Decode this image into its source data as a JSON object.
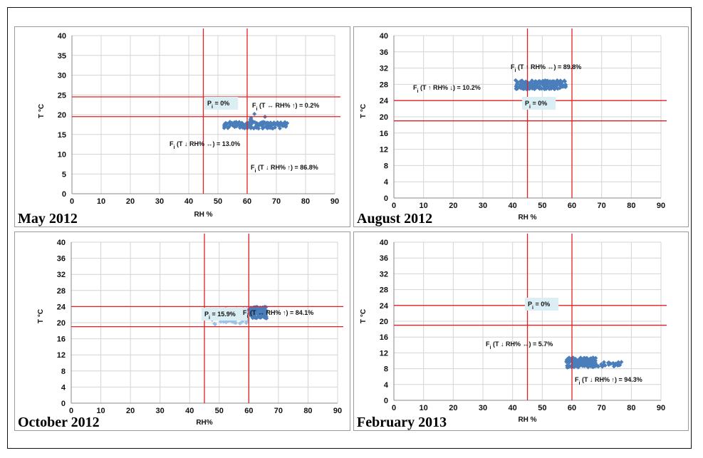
{
  "chart_data": [
    {
      "type": "scatter",
      "panel_label": "May 2012",
      "xlabel": "RH %",
      "ylabel": "T °C",
      "xlim": [
        0,
        90
      ],
      "ylim": [
        0,
        40
      ],
      "xticks": [
        0,
        10,
        20,
        30,
        40,
        50,
        60,
        70,
        80,
        90
      ],
      "yticks": [
        0,
        5,
        10,
        15,
        20,
        25,
        30,
        35,
        40
      ],
      "grid": true,
      "thresholds": {
        "rh": [
          45,
          60
        ],
        "t": [
          19.5,
          24.5
        ]
      },
      "clusters": [
        {
          "rh": [
            52,
            74
          ],
          "t": [
            16.5,
            18.2
          ],
          "color": "#4a7ebb",
          "n": 140
        },
        {
          "rh": [
            60,
            67
          ],
          "t": [
            17,
            20.3
          ],
          "color": "#4a7ebb",
          "n": 12
        }
      ],
      "annotations": [
        {
          "text": "Pi = 0%",
          "boxed": true
        },
        {
          "text": "Fi (T ↔ RH% ↑) = 0.2%",
          "boxed": false
        },
        {
          "text": "Fi (T ↓ RH% ↔) = 13.0%",
          "boxed": false
        },
        {
          "text": "Fi (T ↓ RH% ↑) = 86.8%",
          "boxed": false
        }
      ]
    },
    {
      "type": "scatter",
      "panel_label": "August 2012",
      "xlabel": "RH %",
      "ylabel": "T °C",
      "xlim": [
        0,
        90
      ],
      "ylim": [
        0,
        40
      ],
      "xticks": [
        0,
        10,
        20,
        30,
        40,
        50,
        60,
        70,
        80,
        90
      ],
      "yticks": [
        0,
        4,
        8,
        12,
        16,
        20,
        24,
        28,
        32,
        36,
        40
      ],
      "grid": true,
      "thresholds": {
        "rh": [
          45,
          60
        ],
        "t": [
          19,
          24
        ]
      },
      "clusters": [
        {
          "rh": [
            41,
            58
          ],
          "t": [
            26.8,
            29
          ],
          "color": "#4a7ebb",
          "n": 170
        }
      ],
      "annotations": [
        {
          "text": "Fi (T ↑ RH% ↔) = 89.8%",
          "boxed": false
        },
        {
          "text": "Fi (T ↑ RH% ↓) = 10.2%",
          "boxed": false
        },
        {
          "text": "Pi = 0%",
          "boxed": true
        }
      ]
    },
    {
      "type": "scatter",
      "panel_label": "October 2012",
      "xlabel": "RH%",
      "ylabel": "T °C",
      "xlim": [
        0,
        90
      ],
      "ylim": [
        0,
        40
      ],
      "xticks": [
        0,
        10,
        20,
        30,
        40,
        50,
        60,
        70,
        80,
        90
      ],
      "yticks": [
        0,
        4,
        8,
        12,
        16,
        20,
        24,
        28,
        32,
        36,
        40
      ],
      "grid": true,
      "thresholds": {
        "rh": [
          45,
          60
        ],
        "t": [
          19,
          24
        ]
      },
      "clusters": [
        {
          "rh": [
            47,
            60
          ],
          "t": [
            19.5,
            23.5
          ],
          "color": "#9dc3e6",
          "n": 90
        },
        {
          "rh": [
            60,
            66
          ],
          "t": [
            21,
            24
          ],
          "color": "#4a7ebb",
          "n": 110
        }
      ],
      "annotations": [
        {
          "text": "Pi = 15.9%",
          "boxed": true
        },
        {
          "text": "Fi (T ↔ RH% ↑) = 84.1%",
          "boxed": false
        }
      ]
    },
    {
      "type": "scatter",
      "panel_label": "February 2013",
      "xlabel": "RH %",
      "ylabel": "T °C",
      "xlim": [
        0,
        90
      ],
      "ylim": [
        0,
        40
      ],
      "xticks": [
        0,
        10,
        20,
        30,
        40,
        50,
        60,
        70,
        80,
        90
      ],
      "yticks": [
        0,
        4,
        8,
        12,
        16,
        20,
        24,
        28,
        32,
        36,
        40
      ],
      "grid": true,
      "thresholds": {
        "rh": [
          45,
          60
        ],
        "t": [
          19,
          24
        ]
      },
      "clusters": [
        {
          "rh": [
            58,
            68
          ],
          "t": [
            8.3,
            10.8
          ],
          "color": "#4a7ebb",
          "n": 150
        },
        {
          "rh": [
            66,
            77
          ],
          "t": [
            8.5,
            9.8
          ],
          "color": "#4a7ebb",
          "n": 40
        }
      ],
      "annotations": [
        {
          "text": "Pi = 0%",
          "boxed": true
        },
        {
          "text": "Fi (T ↓ RH% ↔) = 5.7%",
          "boxed": false
        },
        {
          "text": "Fi (T ↓ RH% ↑) = 94.3%",
          "boxed": false
        }
      ]
    }
  ],
  "colors": {
    "threshold": "#e02020",
    "grid": "#d4d4d4",
    "marker": "#4a7ebb",
    "marker_light": "#9dc3e6",
    "box": "#dbeef4"
  }
}
